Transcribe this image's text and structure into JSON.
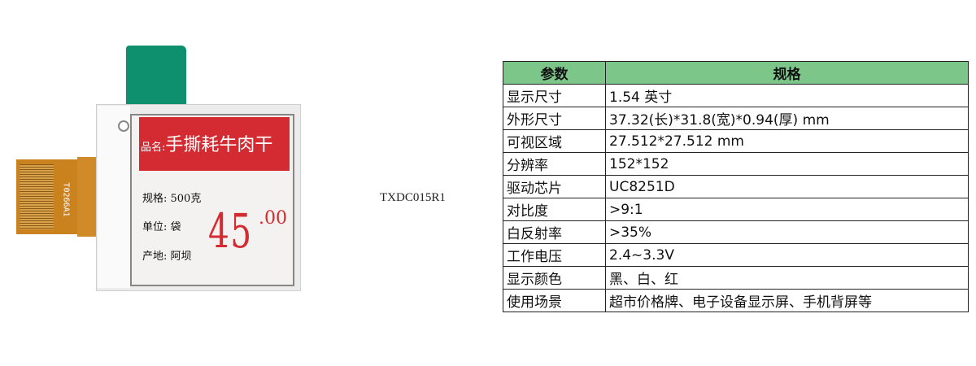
{
  "product": {
    "fpc_label": "T0266A1",
    "screen": {
      "name_label": "品名:",
      "name": "手撕耗牛肉干",
      "spec": "规格: 500克",
      "unit": "单位: 袋",
      "origin": "产地: 阿坝",
      "price": "45",
      "cents": ".00"
    },
    "colors": {
      "red": "#d42a32",
      "tab": "#0e8f6e",
      "fpc": "#c9821e"
    }
  },
  "model": "TXDC015R1",
  "table": {
    "headers": [
      "参数",
      "规格"
    ],
    "header_color": "#7dc68a",
    "rows": [
      [
        "显示尺寸",
        "1.54 英寸"
      ],
      [
        "外形尺寸",
        "37.32(长)*31.8(宽)*0.94(厚) mm"
      ],
      [
        "可视区域",
        "27.512*27.512 mm"
      ],
      [
        "分辨率",
        "152*152"
      ],
      [
        "驱动芯片",
        "UC8251D"
      ],
      [
        "对比度",
        ">9:1"
      ],
      [
        "白反射率",
        ">35%"
      ],
      [
        "工作电压",
        "2.4~3.3V"
      ],
      [
        "显示颜色",
        "黑、白、红"
      ],
      [
        "使用场景",
        "超市价格牌、电子设备显示屏、手机背屏等"
      ]
    ]
  }
}
